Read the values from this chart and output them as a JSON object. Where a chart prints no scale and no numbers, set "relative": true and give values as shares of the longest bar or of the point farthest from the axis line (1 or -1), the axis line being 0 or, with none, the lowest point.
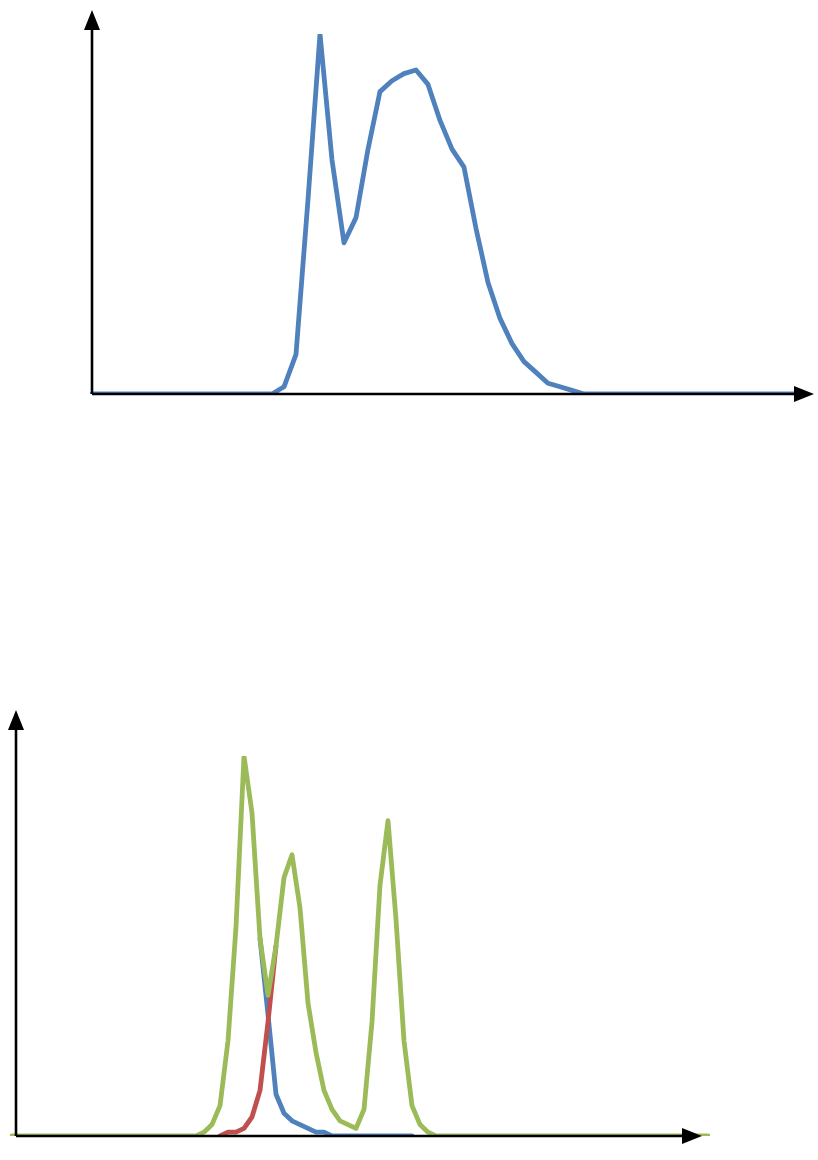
{
  "chart_data": [
    {
      "type": "line",
      "relative": true,
      "marker": "none",
      "line_style": "solid",
      "categories": [
        null,
        null,
        null,
        null,
        null,
        null,
        null,
        null,
        null,
        null,
        null,
        null,
        null,
        null,
        null,
        null,
        null,
        null,
        null,
        null,
        null,
        null,
        null,
        null,
        null,
        null,
        null,
        null,
        null,
        null,
        null,
        null,
        null,
        null,
        null,
        null,
        null,
        null,
        null,
        null,
        null,
        null,
        null,
        null,
        null,
        null,
        null,
        null,
        null,
        null,
        null,
        null,
        null,
        null,
        null,
        null,
        null,
        null,
        null,
        null
      ],
      "series": [
        {
          "color": "#4f81bd",
          "values": [
            0,
            0,
            0,
            0,
            0,
            0,
            0,
            0,
            0,
            0,
            0,
            0,
            0,
            0,
            0,
            0,
            0.02,
            0.11,
            0.54,
            1,
            0.65,
            0.42,
            0.49,
            0.68,
            0.84,
            0.87,
            0.89,
            0.9,
            0.86,
            0.76,
            0.68,
            0.63,
            0.46,
            0.31,
            0.21,
            0.14,
            0.09,
            0.06,
            0.03,
            0.02,
            0.01,
            0,
            0,
            0,
            0,
            0,
            0,
            0,
            0,
            0,
            0,
            0,
            0,
            0,
            0,
            0,
            0,
            0,
            0,
            0
          ]
        }
      ]
    },
    {
      "type": "line",
      "relative": true,
      "marker": "none",
      "line_style": "solid",
      "categories": [
        null,
        null,
        null,
        null,
        null,
        null,
        null,
        null,
        null,
        null,
        null,
        null,
        null,
        null,
        null,
        null,
        null,
        null,
        null,
        null,
        null,
        null,
        null,
        null,
        null,
        null,
        null,
        null,
        null,
        null,
        null,
        null,
        null,
        null,
        null,
        null,
        null,
        null,
        null,
        null,
        null,
        null,
        null,
        null,
        null,
        null,
        null,
        null,
        null,
        null,
        null,
        null,
        null,
        null,
        null,
        null,
        null,
        null,
        null,
        null,
        null,
        null,
        null,
        null,
        null,
        null,
        null,
        null,
        null,
        null,
        null,
        null,
        null,
        null,
        null,
        null,
        null,
        null,
        null,
        null,
        null,
        null,
        null,
        null,
        null,
        null,
        null,
        null
      ],
      "series": [
        {
          "color": "#4f81bd",
          "values": [
            null,
            null,
            null,
            null,
            null,
            null,
            null,
            null,
            null,
            null,
            null,
            null,
            null,
            null,
            null,
            null,
            null,
            null,
            null,
            null,
            null,
            null,
            null,
            null,
            null,
            null,
            null,
            null,
            null,
            null,
            null,
            0.52,
            0.32,
            0.11,
            0.06,
            0.04,
            0.03,
            0.02,
            0.01,
            0.01,
            0,
            0,
            0,
            0,
            0,
            0,
            0,
            0,
            0,
            0,
            0,
            null,
            null,
            null,
            null,
            null,
            null,
            null,
            null,
            null,
            null,
            null,
            null,
            null,
            null,
            null,
            null,
            null,
            null,
            null,
            null,
            null,
            null,
            null,
            null,
            null,
            null,
            null,
            null,
            null,
            null,
            null,
            null,
            null,
            null,
            null,
            null,
            null
          ]
        },
        {
          "color": "#c0504d",
          "values": [
            null,
            null,
            null,
            null,
            null,
            null,
            null,
            null,
            null,
            null,
            null,
            null,
            null,
            null,
            null,
            null,
            null,
            null,
            null,
            null,
            null,
            null,
            null,
            null,
            null,
            null,
            0,
            0.01,
            0.01,
            0.02,
            0.05,
            0.12,
            0.3,
            0.5,
            null,
            null,
            null,
            null,
            null,
            null,
            null,
            null,
            null,
            null,
            null,
            null,
            null,
            null,
            null,
            null,
            null,
            null,
            null,
            null,
            null,
            null,
            null,
            null,
            null,
            null,
            null,
            null,
            null,
            null,
            null,
            null,
            null,
            null,
            null,
            null,
            null,
            null,
            null,
            null,
            null,
            null,
            null,
            null,
            null,
            null,
            null,
            null,
            null,
            null,
            null,
            null,
            null,
            null
          ]
        },
        {
          "color": "#9bbb59",
          "values": [
            0,
            0,
            0,
            0,
            0,
            0,
            0,
            0,
            0,
            0,
            0,
            0,
            0,
            0,
            0,
            0,
            0,
            0,
            0,
            0,
            0,
            0,
            0,
            0,
            0.01,
            0.03,
            0.08,
            0.25,
            0.55,
            1,
            0.85,
            0.52,
            0.37,
            0.5,
            0.68,
            0.74,
            0.6,
            0.35,
            0.22,
            0.12,
            0.07,
            0.04,
            0.03,
            0.02,
            0.07,
            0.3,
            0.66,
            0.83,
            0.57,
            0.25,
            0.08,
            0.03,
            0.01,
            0,
            0,
            0,
            0,
            0,
            0,
            0,
            0,
            0,
            0,
            0,
            0,
            0,
            0,
            0,
            0,
            0,
            0,
            0,
            0,
            0,
            0,
            0,
            0,
            0,
            0,
            0,
            0,
            0,
            0,
            0,
            0,
            0,
            0,
            0
          ]
        }
      ]
    }
  ]
}
